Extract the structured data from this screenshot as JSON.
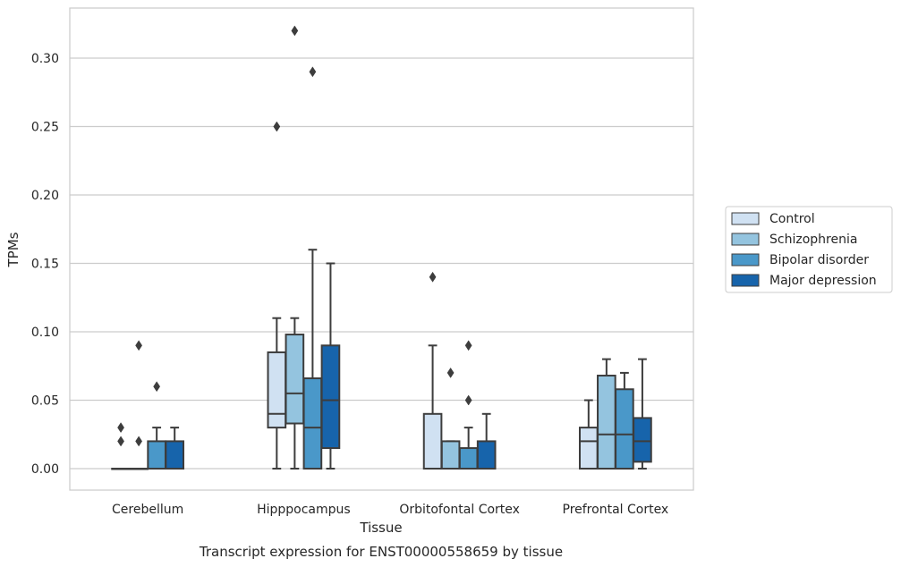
{
  "caption": "Transcript expression for ENST00000558659 by tissue",
  "colors": {
    "box_edge": "#3d3d3d",
    "grid": "#cccccc",
    "frame": "#cccccc"
  },
  "chart_data": {
    "type": "box",
    "xlabel": "Tissue",
    "ylabel": "TPMs",
    "ylim": [
      -0.016,
      0.337
    ],
    "yticks": [
      "0.00",
      "0.05",
      "0.10",
      "0.15",
      "0.20",
      "0.25",
      "0.30"
    ],
    "grid": true,
    "legend_position": "right",
    "categories": [
      "Cerebellum",
      "Hipppocampus",
      "Orbitofontal Cortex",
      "Prefrontal Cortex"
    ],
    "series": [
      {
        "name": "Control",
        "color": "#d0e1f2",
        "boxes": [
          {
            "whisker_low": 0.0,
            "q1": 0.0,
            "median": 0.0,
            "q3": 0.0,
            "whisker_high": 0.0,
            "outliers": [
              0.02,
              0.03
            ]
          },
          {
            "whisker_low": 0.0,
            "q1": 0.03,
            "median": 0.04,
            "q3": 0.085,
            "whisker_high": 0.11,
            "outliers": [
              0.25
            ]
          },
          {
            "whisker_low": 0.0,
            "q1": 0.0,
            "median": 0.0,
            "q3": 0.04,
            "whisker_high": 0.09,
            "outliers": [
              0.14
            ]
          },
          {
            "whisker_low": 0.0,
            "q1": 0.0,
            "median": 0.02,
            "q3": 0.03,
            "whisker_high": 0.05,
            "outliers": []
          }
        ]
      },
      {
        "name": "Schizophrenia",
        "color": "#94c4df",
        "boxes": [
          {
            "whisker_low": 0.0,
            "q1": 0.0,
            "median": 0.0,
            "q3": 0.0,
            "whisker_high": 0.0,
            "outliers": [
              0.02,
              0.09
            ]
          },
          {
            "whisker_low": 0.0,
            "q1": 0.033,
            "median": 0.055,
            "q3": 0.098,
            "whisker_high": 0.11,
            "outliers": [
              0.32
            ]
          },
          {
            "whisker_low": 0.0,
            "q1": 0.0,
            "median": 0.0,
            "q3": 0.02,
            "whisker_high": 0.02,
            "outliers": [
              0.07
            ]
          },
          {
            "whisker_low": 0.0,
            "q1": 0.0,
            "median": 0.025,
            "q3": 0.068,
            "whisker_high": 0.08,
            "outliers": []
          }
        ]
      },
      {
        "name": "Bipolar disorder",
        "color": "#4a98c9",
        "boxes": [
          {
            "whisker_low": 0.0,
            "q1": 0.0,
            "median": 0.0,
            "q3": 0.02,
            "whisker_high": 0.03,
            "outliers": [
              0.06
            ]
          },
          {
            "whisker_low": 0.0,
            "q1": 0.0,
            "median": 0.03,
            "q3": 0.066,
            "whisker_high": 0.16,
            "outliers": [
              0.29
            ]
          },
          {
            "whisker_low": 0.0,
            "q1": 0.0,
            "median": 0.0,
            "q3": 0.015,
            "whisker_high": 0.03,
            "outliers": [
              0.05,
              0.09
            ]
          },
          {
            "whisker_low": 0.0,
            "q1": 0.0,
            "median": 0.025,
            "q3": 0.058,
            "whisker_high": 0.07,
            "outliers": []
          }
        ]
      },
      {
        "name": "Major depression",
        "color": "#1764ab",
        "boxes": [
          {
            "whisker_low": 0.0,
            "q1": 0.0,
            "median": 0.0,
            "q3": 0.02,
            "whisker_high": 0.03,
            "outliers": []
          },
          {
            "whisker_low": 0.0,
            "q1": 0.015,
            "median": 0.05,
            "q3": 0.09,
            "whisker_high": 0.15,
            "outliers": []
          },
          {
            "whisker_low": 0.0,
            "q1": 0.0,
            "median": 0.0,
            "q3": 0.02,
            "whisker_high": 0.04,
            "outliers": []
          },
          {
            "whisker_low": 0.0,
            "q1": 0.005,
            "median": 0.02,
            "q3": 0.037,
            "whisker_high": 0.08,
            "outliers": []
          }
        ]
      }
    ]
  }
}
